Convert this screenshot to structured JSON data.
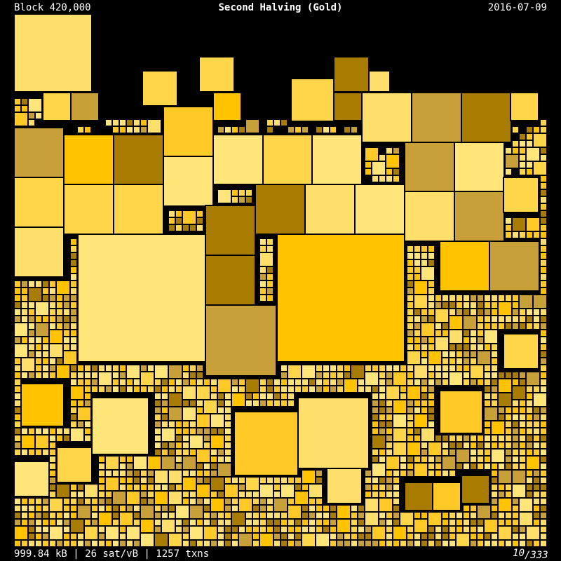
{
  "header": {
    "left": "Block 420,000",
    "title": "Second Halving (Gold)",
    "right": "2016-07-09"
  },
  "footer": {
    "stats": "999.84 kB | 26 sat/vB | 1257 txns",
    "page": "10",
    "total": "/333"
  }
}
